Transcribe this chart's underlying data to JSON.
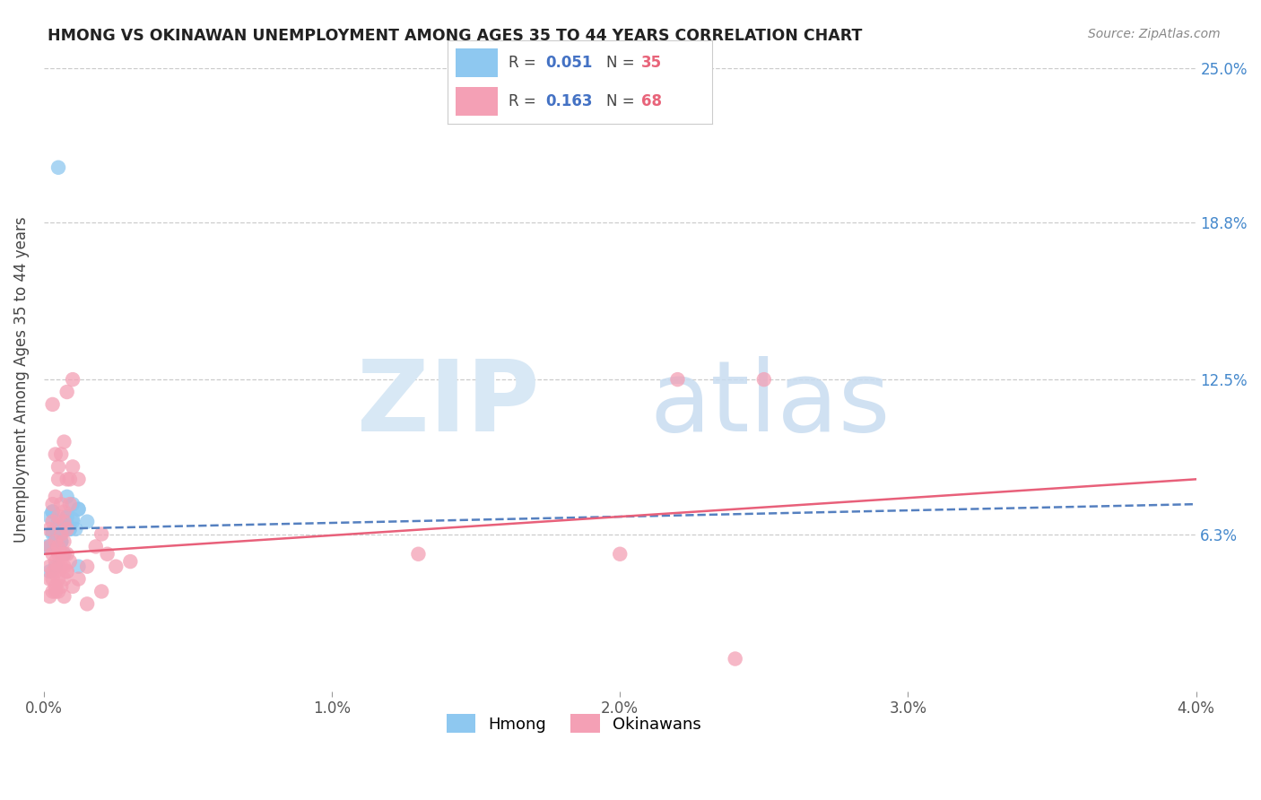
{
  "title": "HMONG VS OKINAWAN UNEMPLOYMENT AMONG AGES 35 TO 44 YEARS CORRELATION CHART",
  "source": "Source: ZipAtlas.com",
  "ylabel": "Unemployment Among Ages 35 to 44 years",
  "xlim": [
    0.0,
    0.04
  ],
  "ylim": [
    0.0,
    0.25
  ],
  "yticks": [
    0.063,
    0.125,
    0.188,
    0.25
  ],
  "ytick_labels": [
    "6.3%",
    "12.5%",
    "18.8%",
    "25.0%"
  ],
  "xticks": [
    0.0,
    0.01,
    0.02,
    0.03,
    0.04
  ],
  "xtick_labels": [
    "0.0%",
    "1.0%",
    "2.0%",
    "3.0%",
    "4.0%"
  ],
  "hmong_color": "#8EC8F0",
  "okinawan_color": "#F4A0B5",
  "hmong_line_color": "#5580C0",
  "okinawan_line_color": "#E8607A",
  "background_color": "#FFFFFF",
  "grid_color": "#CCCCCC",
  "hmong_x": [
    0.0005,
    0.0008,
    0.0012,
    0.0005,
    0.0003,
    0.001,
    0.0007,
    0.0002,
    0.0015,
    0.0008,
    0.0004,
    0.0006,
    0.001,
    0.0003,
    0.0007,
    0.0012,
    0.0005,
    0.0009,
    0.0002,
    0.0004,
    0.0006,
    0.0001,
    0.0008,
    0.0003,
    0.001,
    0.0005,
    0.0007,
    0.0012,
    0.0004,
    0.0002,
    0.0009,
    0.0006,
    0.0003,
    0.0011,
    0.0008
  ],
  "hmong_y": [
    0.21,
    0.07,
    0.073,
    0.068,
    0.072,
    0.075,
    0.067,
    0.07,
    0.068,
    0.078,
    0.065,
    0.063,
    0.068,
    0.072,
    0.066,
    0.073,
    0.06,
    0.065,
    0.058,
    0.062,
    0.06,
    0.058,
    0.067,
    0.064,
    0.069,
    0.062,
    0.055,
    0.05,
    0.05,
    0.048,
    0.065,
    0.06,
    0.063,
    0.065,
    0.07
  ],
  "okinawan_x": [
    0.0003,
    0.0005,
    0.0008,
    0.001,
    0.0004,
    0.0007,
    0.0012,
    0.0006,
    0.0009,
    0.0003,
    0.0005,
    0.0008,
    0.0002,
    0.0006,
    0.001,
    0.0004,
    0.0007,
    0.0003,
    0.0005,
    0.0009,
    0.0002,
    0.0006,
    0.0004,
    0.0007,
    0.0003,
    0.0005,
    0.0008,
    0.0002,
    0.0006,
    0.0004,
    0.0007,
    0.0003,
    0.0005,
    0.0008,
    0.0002,
    0.0004,
    0.0007,
    0.0009,
    0.0005,
    0.0003,
    0.0006,
    0.0008,
    0.0004,
    0.0007,
    0.0003,
    0.0005,
    0.0002,
    0.0006,
    0.0004,
    0.0007,
    0.013,
    0.024,
    0.022,
    0.025,
    0.02,
    0.002,
    0.0018,
    0.0015,
    0.0022,
    0.0012,
    0.0025,
    0.0008,
    0.003,
    0.001,
    0.0005,
    0.0007,
    0.0015,
    0.002
  ],
  "okinawan_y": [
    0.115,
    0.09,
    0.12,
    0.125,
    0.095,
    0.1,
    0.085,
    0.095,
    0.085,
    0.075,
    0.085,
    0.085,
    0.065,
    0.075,
    0.09,
    0.078,
    0.072,
    0.068,
    0.07,
    0.075,
    0.058,
    0.063,
    0.06,
    0.068,
    0.055,
    0.058,
    0.065,
    0.05,
    0.055,
    0.052,
    0.06,
    0.048,
    0.05,
    0.055,
    0.045,
    0.048,
    0.05,
    0.052,
    0.055,
    0.045,
    0.05,
    0.048,
    0.042,
    0.055,
    0.04,
    0.045,
    0.038,
    0.042,
    0.04,
    0.045,
    0.055,
    0.013,
    0.125,
    0.125,
    0.055,
    0.063,
    0.058,
    0.05,
    0.055,
    0.045,
    0.05,
    0.048,
    0.052,
    0.042,
    0.04,
    0.038,
    0.035,
    0.04
  ]
}
